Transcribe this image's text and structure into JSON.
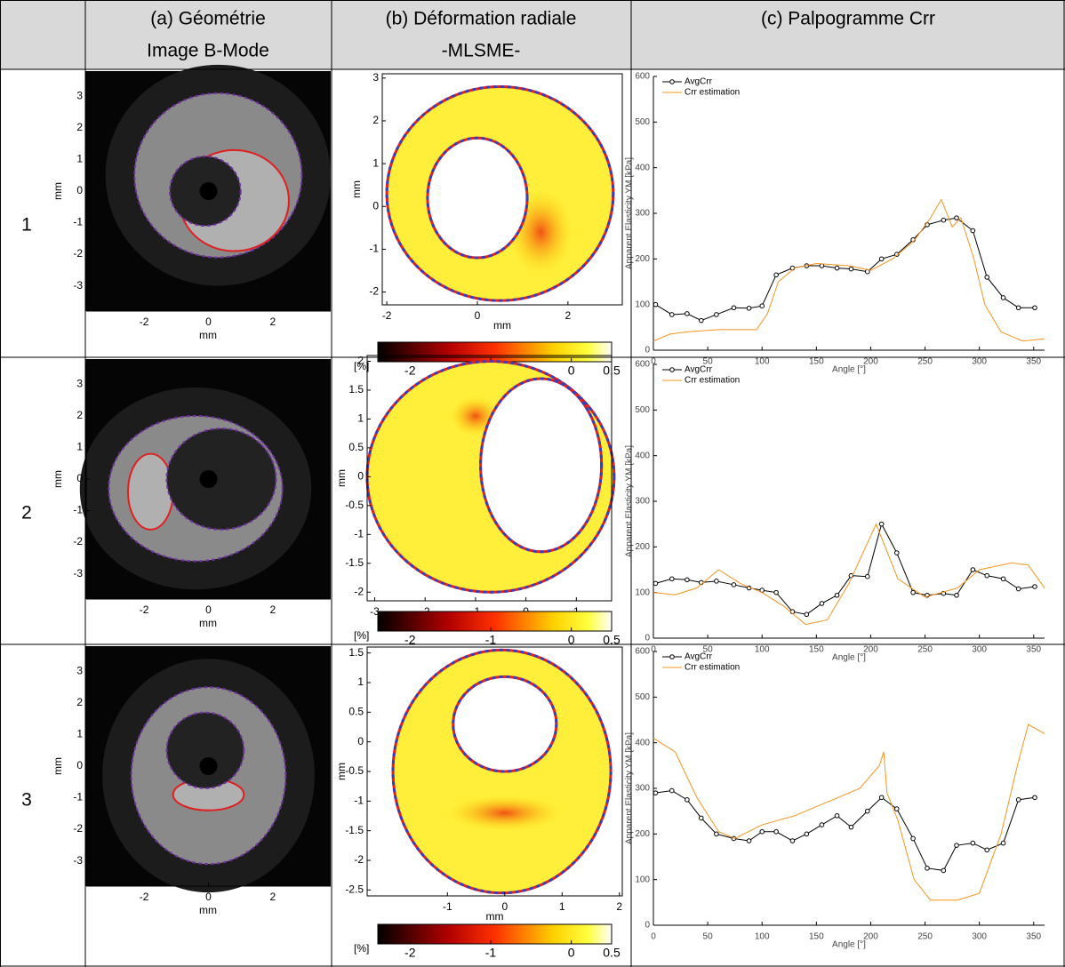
{
  "header": {
    "columns": [
      [
        "(a) Géométrie",
        "Image B-Mode"
      ],
      [
        "(b) Déformation radiale",
        "-MLSME-"
      ],
      [
        "(c) Palpogramme Crr"
      ]
    ]
  },
  "rows": [
    {
      "label": "1",
      "geometry": {
        "xlabel": "mm",
        "ylabel": "mm",
        "xlim": [
          -3.8,
          3.8
        ],
        "ylim": [
          -3.8,
          3.8
        ],
        "xticks": [
          -2,
          0,
          2
        ],
        "yticks": [
          3,
          2,
          1,
          0,
          -1,
          -2,
          -3
        ]
      },
      "strain": {
        "xlabel": "mm",
        "ylabel": "mm",
        "xlim": [
          -2.1,
          3.2
        ],
        "ylim": [
          -2.3,
          3.1
        ],
        "xticks": [
          -2,
          0,
          2
        ],
        "yticks": [
          3,
          2,
          1,
          0,
          -1,
          -2
        ],
        "colorbar": {
          "label": "[%]",
          "lim": [
            -2.4,
            0.5
          ],
          "ticks": [
            -2,
            -1,
            0,
            0.5
          ]
        }
      },
      "palpogram": {
        "type": "line",
        "xlabel": "Angle [°]",
        "ylabel": "Apparent Elasticity YM [kPa]",
        "xlim": [
          0,
          360
        ],
        "ylim": [
          0,
          600
        ],
        "xticks": [
          0,
          50,
          100,
          150,
          200,
          250,
          300,
          350
        ],
        "yticks": [
          0,
          100,
          200,
          300,
          400,
          500,
          600
        ],
        "series": [
          {
            "name": "AvgCrr",
            "color": "#000000",
            "x": [
              2,
              17,
              31,
              44,
              58,
              74,
              88,
              100,
              113,
              128,
              141,
              155,
              169,
              182,
              197,
              210,
              224,
              239,
              252,
              267,
              279,
              294,
              307,
              322,
              336,
              351
            ],
            "values": [
              100,
              78,
              80,
              65,
              78,
              93,
              92,
              97,
              165,
              180,
              185,
              185,
              180,
              178,
              172,
              200,
              210,
              242,
              275,
              285,
              290,
              262,
              160,
              115,
              93,
              93
            ]
          },
          {
            "name": "Crr estimation",
            "color": "#f7941d",
            "x": [
              0,
              15,
              30,
              60,
              95,
              105,
              115,
              130,
              150,
              180,
              200,
              220,
              240,
              255,
              265,
              275,
              283,
              295,
              305,
              320,
              340,
              360
            ],
            "values": [
              20,
              35,
              40,
              45,
              45,
              80,
              150,
              180,
              190,
              185,
              175,
              200,
              240,
              290,
              330,
              270,
              290,
              200,
              100,
              40,
              20,
              25
            ]
          }
        ]
      }
    },
    {
      "label": "2",
      "geometry": {
        "xlabel": "mm",
        "ylabel": "mm",
        "xlim": [
          -3.8,
          3.8
        ],
        "ylim": [
          -3.8,
          3.8
        ],
        "xticks": [
          -2,
          0,
          2
        ],
        "yticks": [
          3,
          2,
          1,
          0,
          -1,
          -2,
          -3
        ]
      },
      "strain": {
        "xlabel": "mm",
        "ylabel": "mm",
        "xlim": [
          -3.15,
          1.7
        ],
        "ylim": [
          -2.15,
          2.1
        ],
        "xticks": [
          -3,
          -2,
          -1,
          0,
          1
        ],
        "yticks": [
          2,
          1.5,
          1,
          0.5,
          0,
          -0.5,
          -1,
          -1.5,
          -2
        ],
        "colorbar": {
          "label": "[%]",
          "lim": [
            -2.4,
            0.5
          ],
          "ticks": [
            -2,
            -1,
            0,
            0.5
          ]
        }
      },
      "palpogram": {
        "type": "line",
        "xlabel": "Angle [°]",
        "ylabel": "Apparent Elasticity YM [kPa]",
        "xlim": [
          0,
          360
        ],
        "ylim": [
          0,
          600
        ],
        "xticks": [
          0,
          50,
          100,
          150,
          200,
          250,
          300,
          350
        ],
        "yticks": [
          0,
          100,
          200,
          300,
          400,
          500,
          600
        ],
        "series": [
          {
            "name": "AvgCrr",
            "color": "#000000",
            "x": [
              2,
              17,
              31,
              44,
              58,
              74,
              88,
              100,
              113,
              128,
              141,
              155,
              169,
              182,
              197,
              210,
              224,
              239,
              252,
              267,
              279,
              294,
              307,
              322,
              336,
              351
            ],
            "values": [
              120,
              130,
              128,
              122,
              125,
              117,
              110,
              105,
              100,
              58,
              52,
              76,
              94,
              137,
              135,
              250,
              187,
              100,
              94,
              98,
              94,
              150,
              137,
              130,
              108,
              113
            ]
          },
          {
            "name": "Crr estimation",
            "color": "#f7941d",
            "x": [
              0,
              20,
              40,
              60,
              80,
              100,
              120,
              140,
              160,
              180,
              205,
              225,
              250,
              280,
              300,
              330,
              345,
              360
            ],
            "values": [
              100,
              95,
              110,
              150,
              120,
              100,
              70,
              30,
              40,
              120,
              250,
              130,
              90,
              110,
              150,
              165,
              160,
              110
            ]
          }
        ]
      }
    },
    {
      "label": "3",
      "geometry": {
        "xlabel": "mm",
        "ylabel": "mm",
        "xlim": [
          -3.8,
          3.8
        ],
        "ylim": [
          -3.8,
          3.8
        ],
        "xticks": [
          -2,
          0,
          2
        ],
        "yticks": [
          3,
          2,
          1,
          0,
          -1,
          -2,
          -3
        ]
      },
      "strain": {
        "xlabel": "mm",
        "ylabel": "mm",
        "xlim": [
          -2.4,
          2.05
        ],
        "ylim": [
          -2.6,
          1.6
        ],
        "xticks": [
          -1,
          0,
          1,
          2
        ],
        "yticks": [
          1.5,
          1,
          0.5,
          0,
          -0.5,
          -1,
          -1.5,
          -2,
          -2.5
        ],
        "colorbar": {
          "label": "[%]",
          "lim": [
            -2.4,
            0.5
          ],
          "ticks": [
            -2,
            -1,
            0,
            0.5
          ]
        }
      },
      "palpogram": {
        "type": "line",
        "xlabel": "Angle [°]",
        "ylabel": "Apparent Elasticity YM [kPa]",
        "xlim": [
          0,
          360
        ],
        "ylim": [
          0,
          600
        ],
        "xticks": [
          0,
          50,
          100,
          150,
          200,
          250,
          300,
          350
        ],
        "yticks": [
          0,
          100,
          200,
          300,
          400,
          500,
          600
        ],
        "series": [
          {
            "name": "AvgCrr",
            "color": "#000000",
            "x": [
              2,
              17,
              31,
              44,
              58,
              74,
              88,
              100,
              113,
              128,
              141,
              155,
              169,
              182,
              197,
              210,
              224,
              239,
              252,
              267,
              279,
              294,
              307,
              322,
              336,
              351
            ],
            "values": [
              290,
              295,
              275,
              235,
              200,
              190,
              185,
              205,
              205,
              185,
              200,
              220,
              240,
              215,
              250,
              280,
              255,
              190,
              125,
              120,
              175,
              180,
              165,
              180,
              275,
              280
            ]
          },
          {
            "name": "Crr estimation",
            "color": "#f7941d",
            "x": [
              0,
              20,
              40,
              60,
              75,
              100,
              130,
              160,
              190,
              208,
              212,
              215,
              225,
              240,
              255,
              280,
              300,
              320,
              335,
              345,
              360
            ],
            "values": [
              410,
              380,
              280,
              205,
              190,
              220,
              240,
              270,
              300,
              350,
              380,
              290,
              230,
              100,
              55,
              55,
              70,
              200,
              350,
              440,
              420
            ]
          }
        ]
      }
    }
  ]
}
